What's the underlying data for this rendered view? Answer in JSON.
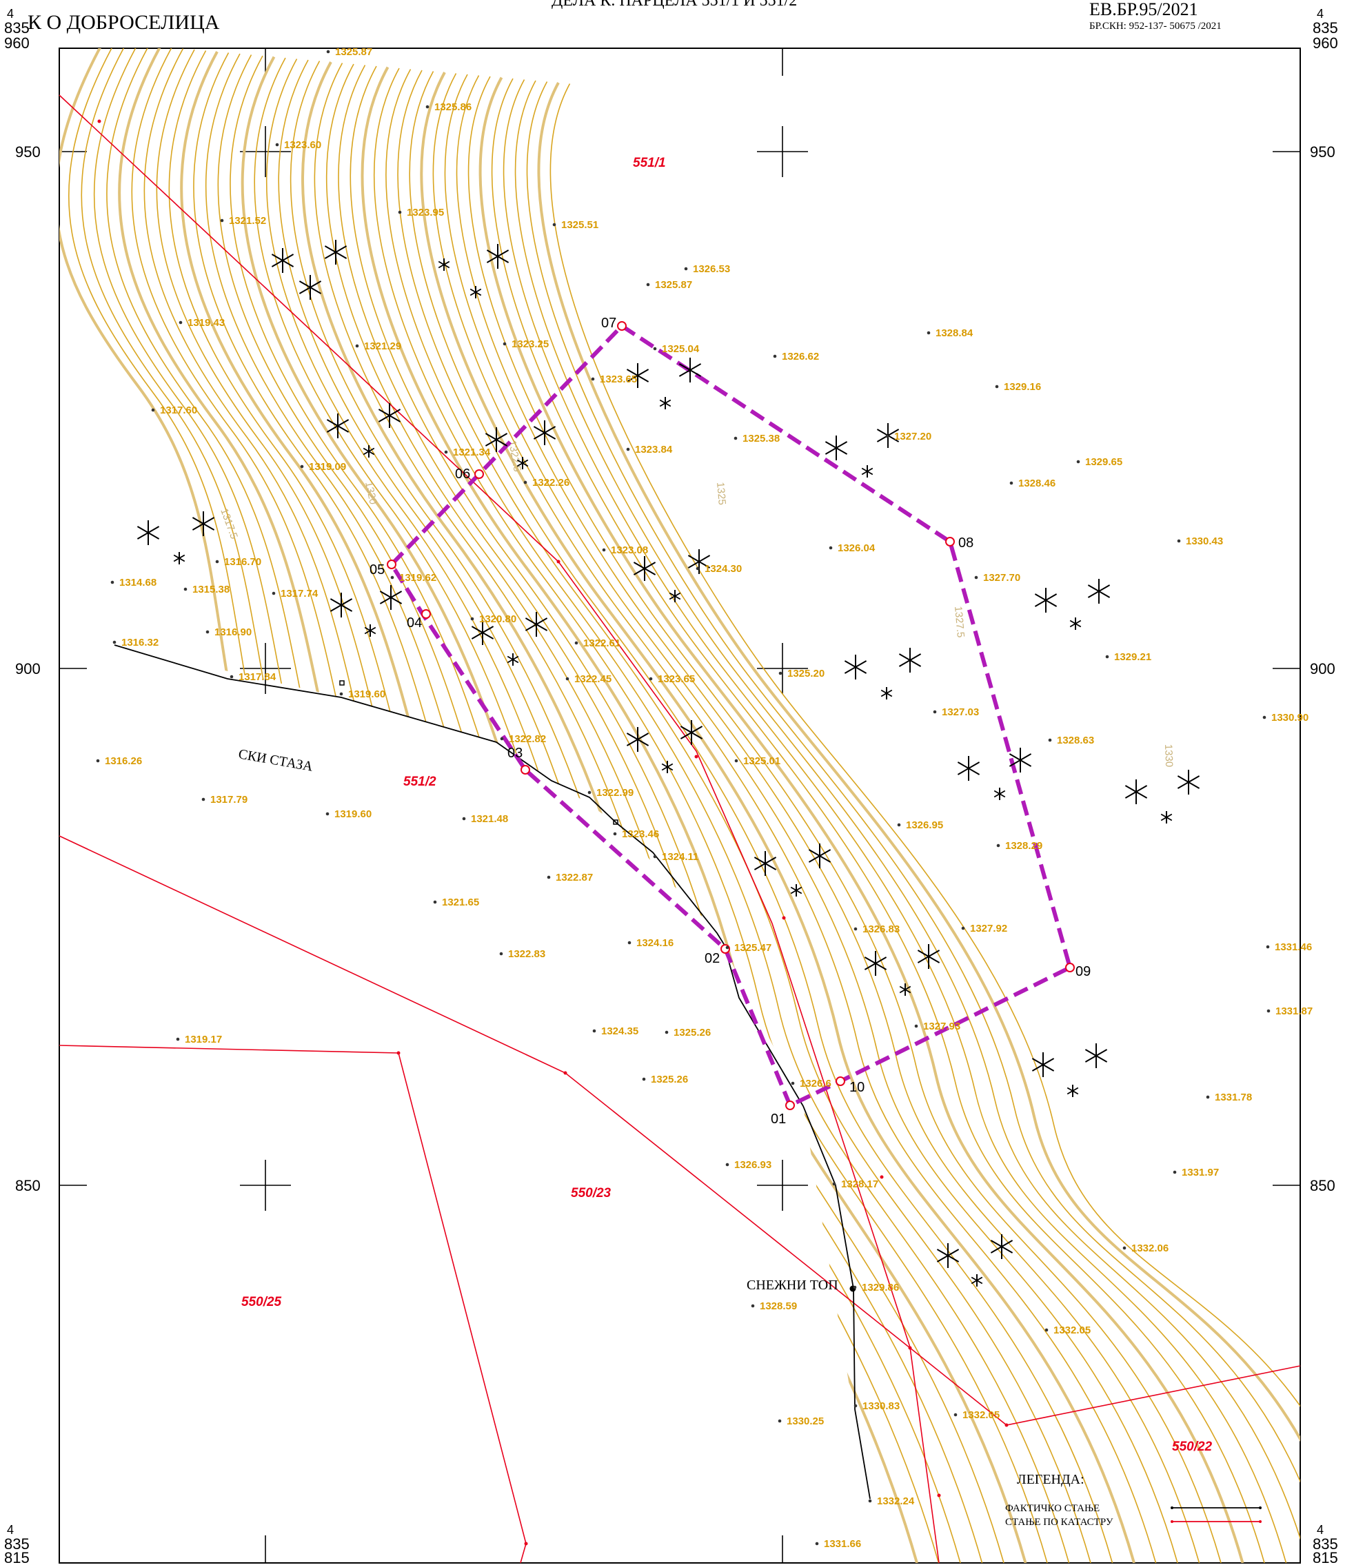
{
  "header": {
    "title_fragment": "ДЕЛА К. ПАРЦЕЛА 551/1 И 551/2",
    "municipality": "К О ДОБРОСЕЛИЦА",
    "ref_number": "ЕВ.БР.95/2021",
    "ref_sub": "БР.СКН: 952-137- 50675 /2021"
  },
  "corners": {
    "top_left": [
      "4",
      "835",
      "960"
    ],
    "top_right": [
      "4",
      "835",
      "960"
    ],
    "bottom_left": [
      "4",
      "835",
      "815"
    ],
    "bottom_right": [
      "4",
      "835",
      "815"
    ]
  },
  "grid_labels": [
    "950",
    "900",
    "850"
  ],
  "parcels": [
    {
      "label": "551/1"
    },
    {
      "label": "551/2"
    },
    {
      "label": "550/23"
    },
    {
      "label": "550/25"
    },
    {
      "label": "550/22"
    }
  ],
  "points": [
    "01",
    "02",
    "03",
    "04",
    "05",
    "06",
    "07",
    "08",
    "09",
    "10"
  ],
  "elevations": [
    "1325.87",
    "1325.86",
    "1323.60",
    "1321.52",
    "1323.95",
    "1325.51",
    "1326.53",
    "1325.87",
    "1319.43",
    "1321.29",
    "1323.25",
    "1328.84",
    "1325.04",
    "1326.62",
    "1329.16",
    "1323.65",
    "1317.60",
    "1325.38",
    "1327.20",
    "1321.34",
    "1323.84",
    "1319.09",
    "1322.26",
    "1329.65",
    "1328.46",
    "1330.43",
    "1316.70",
    "1323.08",
    "1326.04",
    "1314.68",
    "1315.38",
    "1317.74",
    "1319.62",
    "1324.30",
    "1327.70",
    "1320.80",
    "1316.90",
    "1322.61",
    "1316.32",
    "1329.21",
    "1317.84",
    "1322.45",
    "1323.65",
    "1325.20",
    "1319.60",
    "1327.03",
    "1330.90",
    "1322.82",
    "1328.63",
    "1316.26",
    "1325.01",
    "1317.79",
    "1322.99",
    "1319.60",
    "1321.48",
    "1326.95",
    "1323.46",
    "1328.29",
    "1324.11",
    "1322.87",
    "1321.65",
    "1326.83",
    "1327.92",
    "1324.16",
    "1325.47",
    "1331.46",
    "1322.83",
    "1331.87",
    "1327.93",
    "1324.35",
    "1325.26",
    "1319.17",
    "1325.26",
    "1326.6",
    "1331.78",
    "1326.93",
    "1331.97",
    "1328.17",
    "1332.06",
    "1329.86",
    "1328.59",
    "1332.05",
    "1330.83",
    "1332.05",
    "1330.25",
    "1332.24",
    "1331.66"
  ],
  "contour_labels": [
    "1317.5",
    "1320",
    "1322.5",
    "1325",
    "1327.5",
    "1330"
  ],
  "features": {
    "ski_slope": "СКИ СТАЗА",
    "snow_cannon": "СНЕЖНИ ТОП"
  },
  "legend": {
    "title": "ЛЕГЕНДА:",
    "actual": "ФАКТИЧКО СТАЊЕ",
    "cadastre": "СТАЊЕ ПО КАТАСТРУ"
  },
  "colors": {
    "contour": "#d9a520",
    "cadastre_line": "#e8001c",
    "boundary": "#b01ab8",
    "elevation_text": "#d99a00"
  }
}
